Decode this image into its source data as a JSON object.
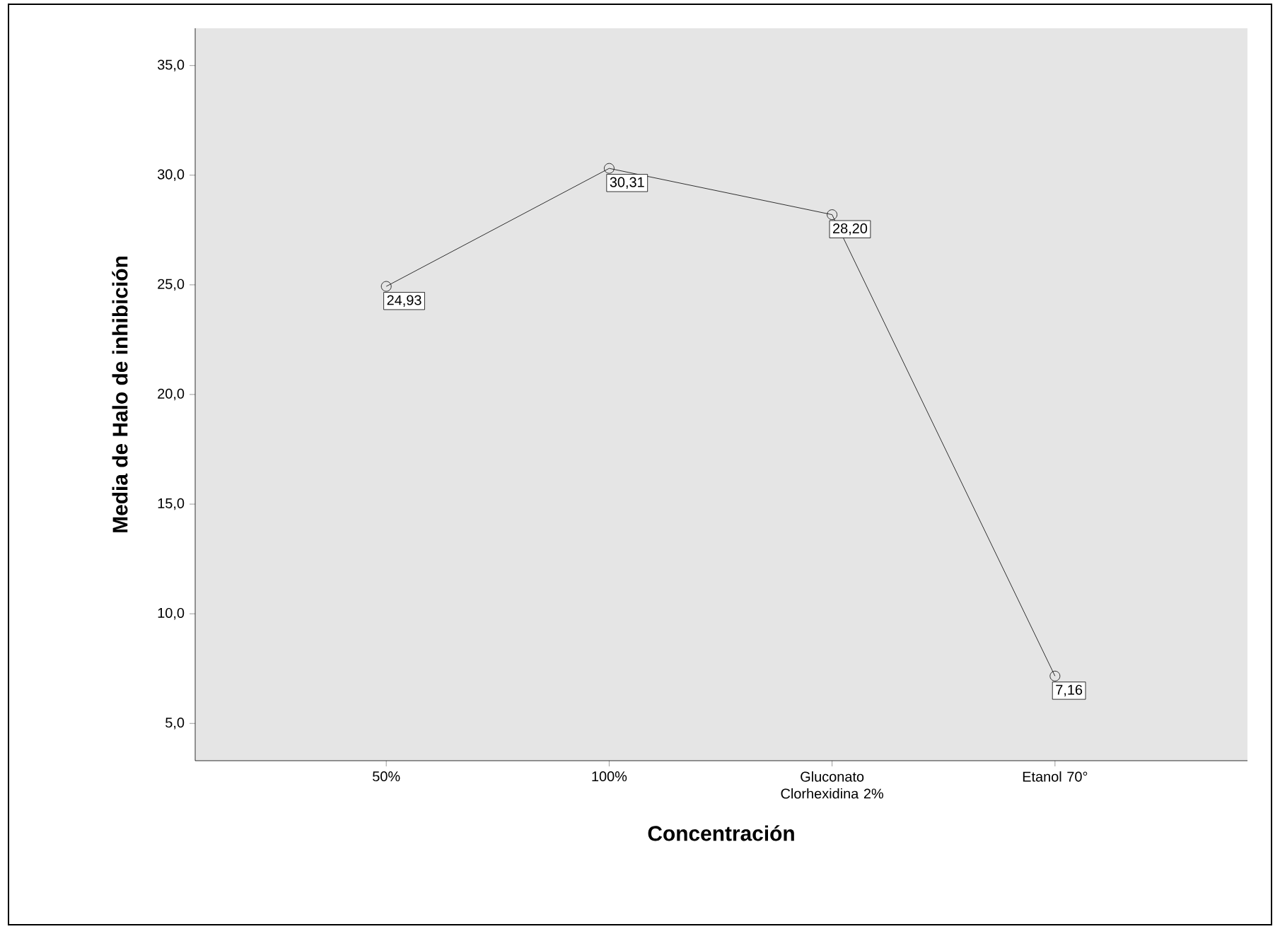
{
  "chart_data": {
    "type": "line",
    "xlabel": "Concentración",
    "ylabel": "Media de Halo de inhibición",
    "categories": [
      "50%",
      "100%",
      "Gluconato Clorhexidina 2%",
      "Etanol 70°"
    ],
    "series": [
      {
        "color": "#000000",
        "values": [
          24.93,
          30.31,
          28.2,
          7.16
        ],
        "value_labels": [
          "24,93",
          "30,31",
          "28,20",
          "7,16"
        ]
      }
    ],
    "ylim": [
      3.3,
      36.7
    ],
    "yticks": [
      {
        "value": 5,
        "label": "5,0"
      },
      {
        "value": 10,
        "label": "10,0"
      },
      {
        "value": 15,
        "label": "15,0"
      },
      {
        "value": 20,
        "label": "20,0"
      },
      {
        "value": 25,
        "label": "25,0"
      },
      {
        "value": 30,
        "label": "30,0"
      },
      {
        "value": 35,
        "label": "35,0"
      }
    ],
    "marker": "circle",
    "line_style": "solid"
  }
}
